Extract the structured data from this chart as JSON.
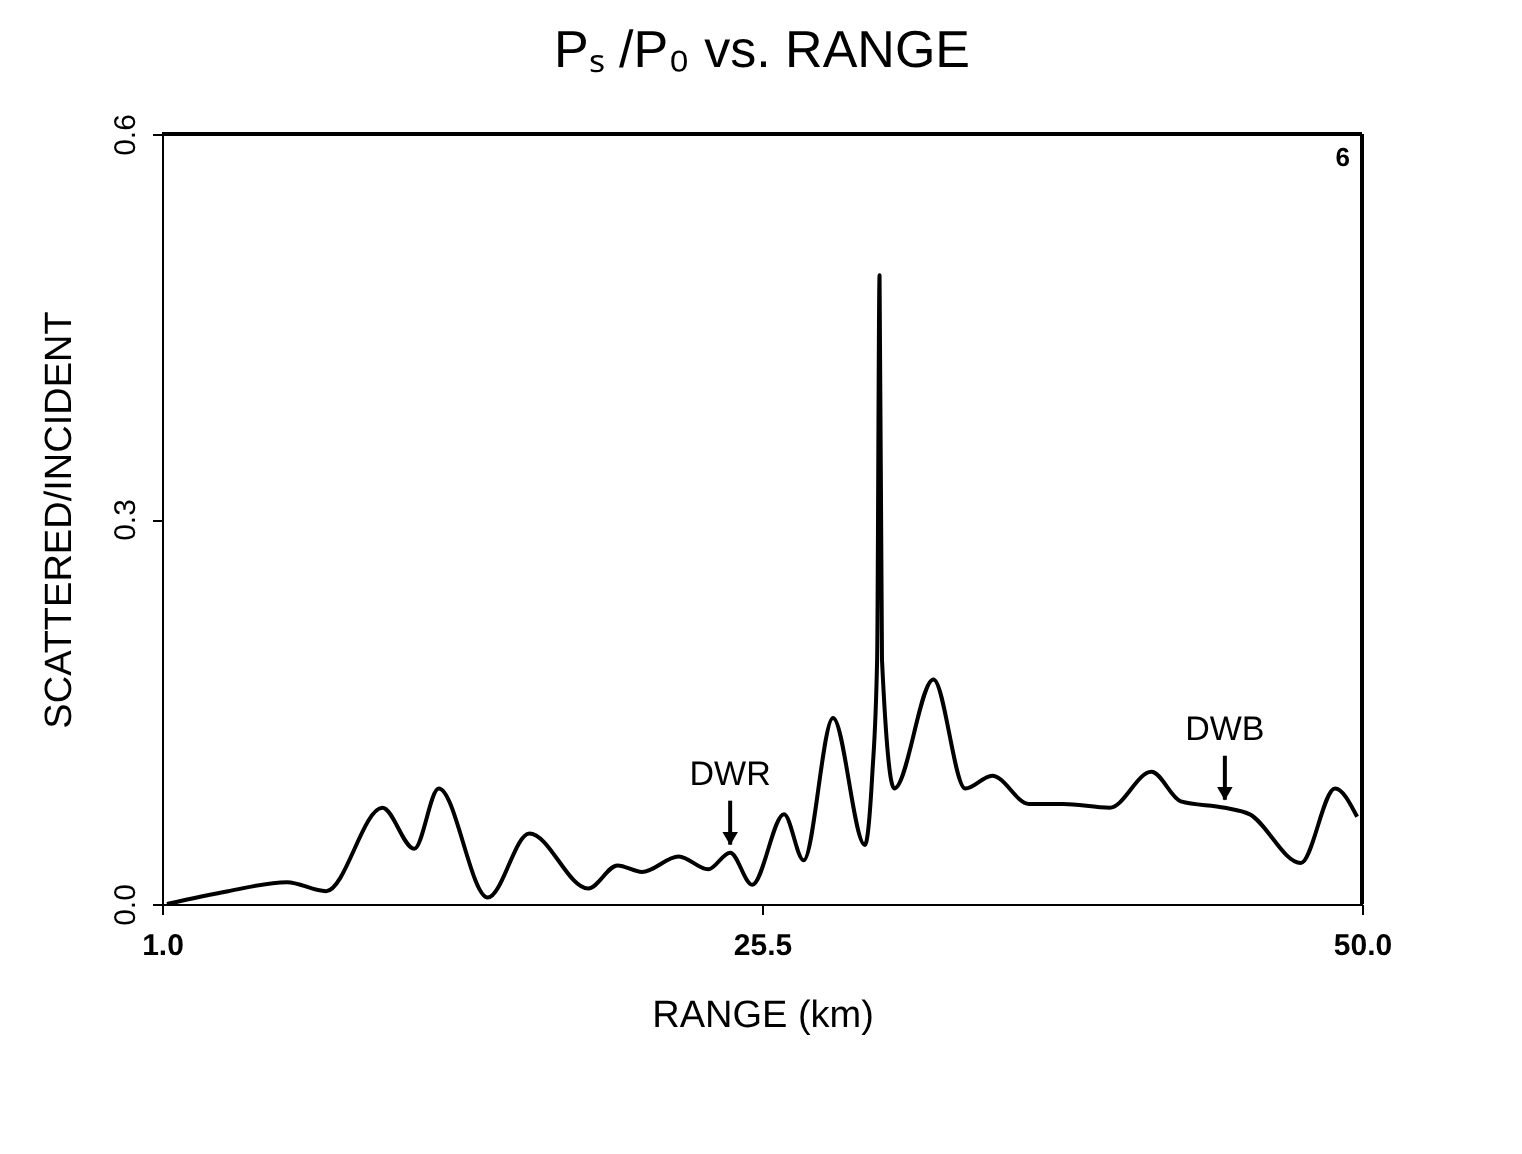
{
  "chart_data": {
    "type": "line",
    "title": "Pₛ /P₀  vs. RANGE",
    "xlabel": "RANGE (km)",
    "ylabel": "SCATTERED/INCIDENT",
    "x": [
      1.2,
      3.7,
      6.1,
      7.7,
      10.0,
      11.3,
      12.3,
      14.3,
      16.0,
      18.4,
      19.6,
      20.6,
      22.1,
      23.3,
      24.2,
      25.1,
      26.4,
      27.2,
      28.4,
      29.7,
      30.0,
      30.2,
      30.3,
      30.4,
      30.9,
      32.5,
      33.8,
      34.9,
      36.4,
      37.8,
      39.7,
      41.4,
      42.6,
      44.4,
      45.4,
      47.5,
      48.9,
      49.8
    ],
    "series": [
      {
        "color": "#000000",
        "values": [
          0.0,
          0.01,
          0.017,
          0.01,
          0.075,
          0.043,
          0.09,
          0.005,
          0.055,
          0.012,
          0.03,
          0.025,
          0.037,
          0.027,
          0.04,
          0.015,
          0.07,
          0.034,
          0.145,
          0.046,
          0.1,
          0.19,
          0.49,
          0.19,
          0.09,
          0.175,
          0.09,
          0.1,
          0.078,
          0.078,
          0.075,
          0.103,
          0.08,
          0.075,
          0.07,
          0.032,
          0.09,
          0.068
        ]
      }
    ],
    "xlim": [
      1.0,
      50.0
    ],
    "xticks": [
      {
        "value": 1.0,
        "label": "1.0"
      },
      25.5,
      {
        "value": 50.0,
        "label": "50.0"
      }
    ],
    "ylim": [
      0.0,
      0.6
    ],
    "yticks": [
      {
        "value": 0.0,
        "label": "0.0"
      },
      0.3,
      0.6
    ],
    "annotations": [
      {
        "text": "DWR",
        "x": 24.2,
        "y": 0.04
      },
      {
        "text": "DWB",
        "x": 44.4,
        "y": 0.075
      },
      "6"
    ],
    "grid": false,
    "marker": "none",
    "line_style": "solid"
  }
}
